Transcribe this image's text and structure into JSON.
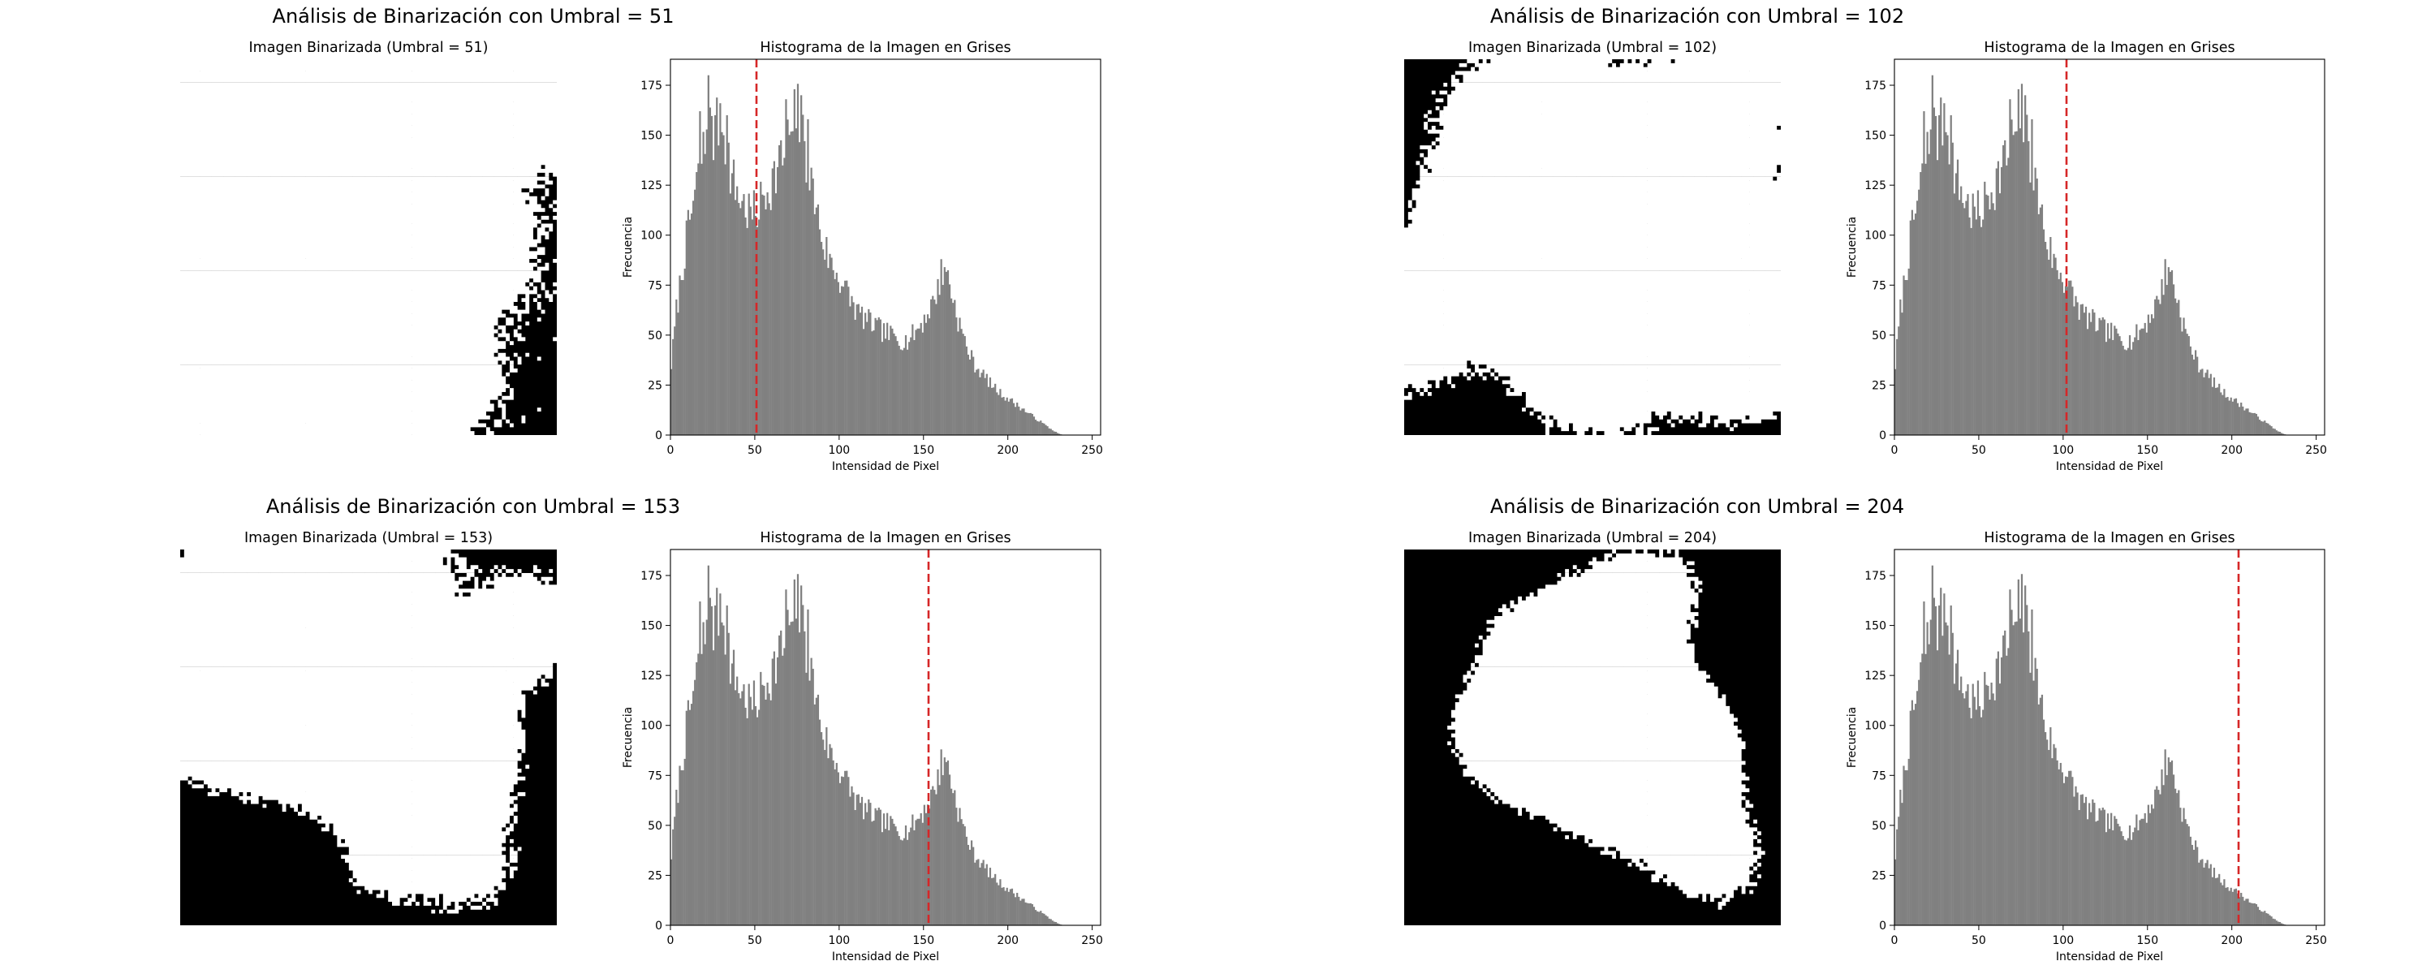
{
  "figure": {
    "panels": [
      {
        "suptitle": "Análisis de Binarización con Umbral = 51",
        "image_title": "Imagen Binarizada (Umbral = 51)",
        "hist_title": "Histograma de la Imagen en Grises",
        "threshold": 51,
        "white_fraction_note": "mostly white foreground"
      },
      {
        "suptitle": "Análisis de Binarización con Umbral = 102",
        "image_title": "Imagen Binarizada (Umbral = 102)",
        "hist_title": "Histograma de la Imagen en Grises",
        "threshold": 102
      },
      {
        "suptitle": "Análisis de Binarización con Umbral = 153",
        "image_title": "Imagen Binarizada (Umbral = 153)",
        "hist_title": "Histograma de la Imagen en Grises",
        "threshold": 153
      },
      {
        "suptitle": "Análisis de Binarización con Umbral = 204",
        "image_title": "Imagen Binarizada (Umbral = 204)",
        "hist_title": "Histograma de la Imagen en Grises",
        "threshold": 204
      }
    ]
  },
  "chart_data": {
    "type": "bar",
    "xlabel": "Intensidad de Pixel",
    "ylabel": "Frecuencia",
    "xlim": [
      0,
      255
    ],
    "ylim": [
      0,
      188
    ],
    "xticks": [
      0,
      50,
      100,
      150,
      200,
      250
    ],
    "yticks": [
      0,
      25,
      50,
      75,
      100,
      125,
      150,
      175
    ],
    "bar_color": "#808080",
    "threshold_color": "#d62728",
    "threshold_style": "dashed",
    "bins": 256,
    "histogram_anchors": [
      [
        0,
        35
      ],
      [
        3,
        62
      ],
      [
        8,
        92
      ],
      [
        12,
        112
      ],
      [
        16,
        128
      ],
      [
        20,
        145
      ],
      [
        22,
        162
      ],
      [
        25,
        142
      ],
      [
        28,
        158
      ],
      [
        32,
        148
      ],
      [
        36,
        128
      ],
      [
        40,
        120
      ],
      [
        45,
        112
      ],
      [
        50,
        110
      ],
      [
        55,
        120
      ],
      [
        60,
        128
      ],
      [
        65,
        136
      ],
      [
        70,
        150
      ],
      [
        75,
        162
      ],
      [
        80,
        135
      ],
      [
        85,
        118
      ],
      [
        90,
        96
      ],
      [
        95,
        85
      ],
      [
        100,
        78
      ],
      [
        105,
        70
      ],
      [
        110,
        62
      ],
      [
        115,
        58
      ],
      [
        120,
        55
      ],
      [
        125,
        52
      ],
      [
        130,
        50
      ],
      [
        135,
        48
      ],
      [
        140,
        47
      ],
      [
        145,
        52
      ],
      [
        150,
        58
      ],
      [
        155,
        66
      ],
      [
        160,
        80
      ],
      [
        163,
        84
      ],
      [
        166,
        72
      ],
      [
        170,
        58
      ],
      [
        175,
        44
      ],
      [
        180,
        35
      ],
      [
        185,
        30
      ],
      [
        190,
        25
      ],
      [
        195,
        21
      ],
      [
        200,
        18
      ],
      [
        205,
        15
      ],
      [
        210,
        12
      ],
      [
        215,
        9
      ],
      [
        220,
        6
      ],
      [
        225,
        3
      ],
      [
        229,
        1
      ],
      [
        232,
        0
      ],
      [
        255,
        0
      ]
    ],
    "spikes": [
      [
        17,
        162
      ],
      [
        22,
        180
      ],
      [
        26,
        160
      ],
      [
        29,
        166
      ],
      [
        31,
        150
      ],
      [
        33,
        160
      ],
      [
        64,
        145
      ],
      [
        68,
        168
      ],
      [
        72,
        152
      ],
      [
        77,
        170
      ],
      [
        81,
        158
      ],
      [
        158,
        78
      ],
      [
        160,
        88
      ],
      [
        162,
        84
      ]
    ]
  }
}
